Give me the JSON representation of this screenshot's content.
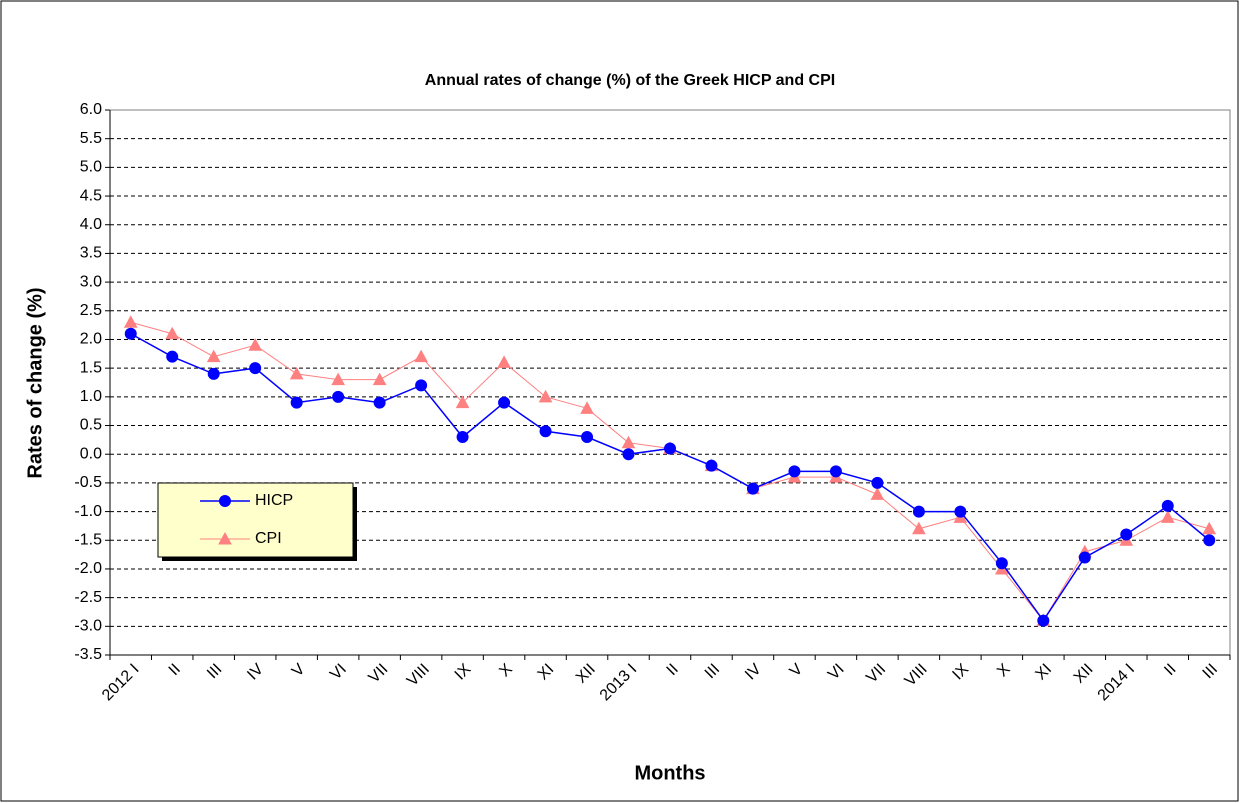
{
  "chart_data": {
    "type": "line",
    "title": "Annual rates of change (%) of the Greek HICP and CPI",
    "x_label": "Months",
    "y_label": "Rates of change (%)",
    "categories": [
      "2012 I",
      "II",
      "III",
      "IV",
      "V",
      "VI",
      "VII",
      "VIII",
      "IX",
      "X",
      "XI",
      "XII",
      "2013 I",
      "II",
      "III",
      "IV",
      "V",
      "VI",
      "VII",
      "VIII",
      "IX",
      "X",
      "XI",
      "XII",
      "2014 I",
      "II",
      "III"
    ],
    "series": [
      {
        "name": "HICP",
        "color": "#0000ff",
        "marker": "circle",
        "values": [
          2.1,
          1.7,
          1.4,
          1.5,
          0.9,
          1.0,
          0.9,
          1.2,
          0.3,
          0.9,
          0.4,
          0.3,
          0.0,
          0.1,
          -0.2,
          -0.6,
          -0.3,
          -0.3,
          -0.5,
          -1.0,
          -1.0,
          -1.9,
          -2.9,
          -1.8,
          -1.4,
          -0.9,
          -1.5
        ]
      },
      {
        "name": "CPI",
        "color": "#ff8080",
        "marker": "triangle",
        "values": [
          2.3,
          2.1,
          1.7,
          1.9,
          1.4,
          1.3,
          1.3,
          1.7,
          0.9,
          1.6,
          1.0,
          0.8,
          0.2,
          0.1,
          -0.2,
          -0.6,
          -0.4,
          -0.4,
          -0.7,
          -1.3,
          -1.1,
          -2.0,
          -2.9,
          -1.7,
          -1.5,
          -1.1,
          -1.3
        ]
      }
    ],
    "ylim": [
      -3.5,
      6.0
    ],
    "yticks": [
      {
        "value": 6,
        "label": "6.0"
      },
      5.5,
      {
        "value": 5,
        "label": "5.0"
      },
      4.5,
      {
        "value": 4,
        "label": "4.0"
      },
      3.5,
      {
        "value": 3,
        "label": "3.0"
      },
      2.5,
      {
        "value": 2,
        "label": "2.0"
      },
      1.5,
      {
        "value": 1,
        "label": "1.0"
      },
      0.5,
      {
        "value": 0,
        "label": "0.0"
      },
      -0.5,
      {
        "value": -1,
        "label": "-1.0"
      },
      -1.5,
      {
        "value": -2,
        "label": "-2.0"
      },
      -2.5,
      {
        "value": -3,
        "label": "-3.0"
      },
      -3.5
    ],
    "grid": true,
    "legend": "lower left"
  }
}
